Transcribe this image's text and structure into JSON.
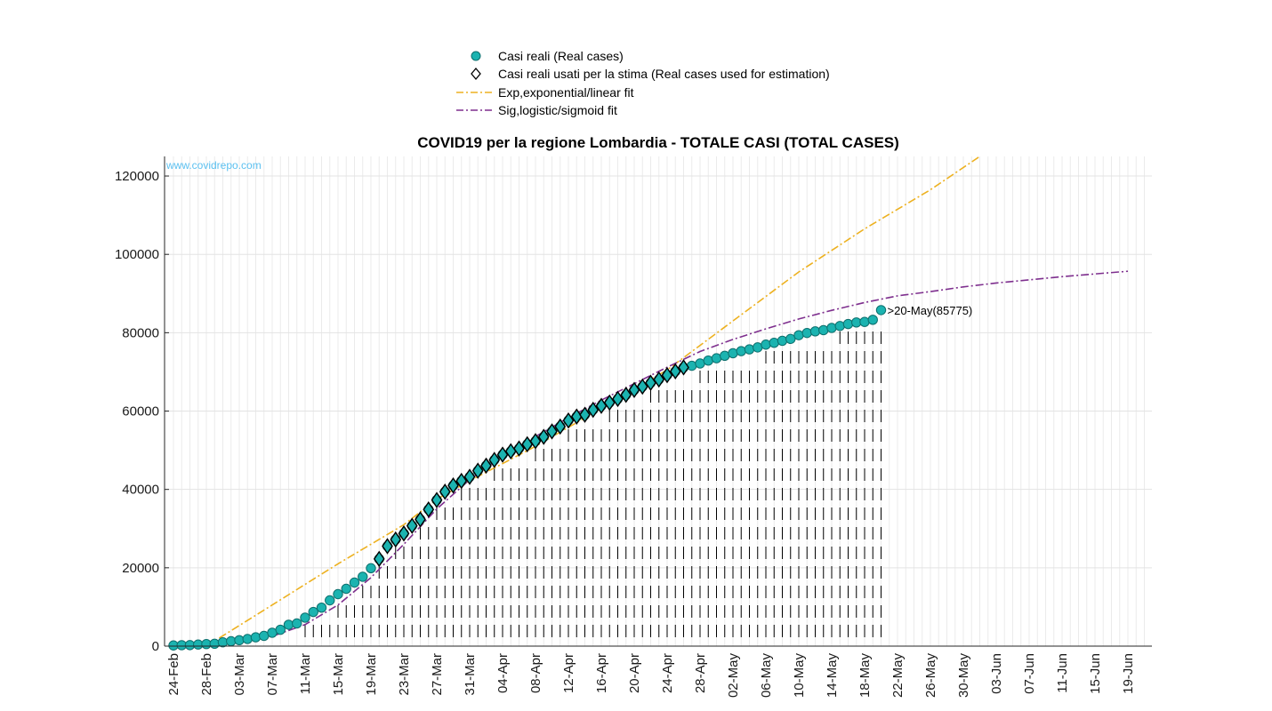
{
  "chart_data": {
    "type": "scatter",
    "title": "COVID19 per la regione Lombardia - TOTALE CASI (TOTAL CASES)",
    "watermark": "www.covidrepo.com",
    "xlabel": "",
    "ylabel": "",
    "ylim": [
      0,
      125000
    ],
    "x_start": "24-Feb",
    "x_end": "21-Jun",
    "y_ticks": [
      "0",
      "20000",
      "40000",
      "60000",
      "80000",
      "100000",
      "120000"
    ],
    "x_ticks": [
      "24-Feb",
      "28-Feb",
      "03-Mar",
      "07-Mar",
      "11-Mar",
      "15-Mar",
      "19-Mar",
      "23-Mar",
      "27-Mar",
      "31-Mar",
      "04-Apr",
      "08-Apr",
      "12-Apr",
      "16-Apr",
      "20-Apr",
      "24-Apr",
      "28-Apr",
      "02-May",
      "06-May",
      "10-May",
      "14-May",
      "18-May",
      "22-May",
      "26-May",
      "30-May",
      "03-Jun",
      "07-Jun",
      "11-Jun",
      "15-Jun",
      "19-Jun"
    ],
    "grid": true,
    "legend_position": "top-center",
    "legend": [
      {
        "label": "Casi reali (Real cases)",
        "marker": "circle"
      },
      {
        "label": "Casi reali usati per la stima (Real cases used for estimation)",
        "marker": "diamond"
      },
      {
        "label": "Exp,exponential/linear fit",
        "marker": "dashdot-line"
      },
      {
        "label": "Sig,logistic/sigmoid fit",
        "marker": "dashdot-line"
      }
    ],
    "colors": {
      "real": "#1bb3b0",
      "real_edge": "#0d6f6d",
      "estimation": "#1bb3b0",
      "exp_fit": "#edb120",
      "sig_fit": "#7e2f8e"
    },
    "end_label": ">20-May(85775)",
    "series": [
      {
        "name": "Casi reali (Real cases)",
        "x": [
          "24-Feb",
          "25-Feb",
          "26-Feb",
          "27-Feb",
          "28-Feb",
          "29-Feb",
          "01-Mar",
          "02-Mar",
          "03-Mar",
          "04-Mar",
          "05-Mar",
          "06-Mar",
          "07-Mar",
          "08-Mar",
          "09-Mar",
          "10-Mar",
          "11-Mar",
          "12-Mar",
          "13-Mar",
          "14-Mar",
          "15-Mar",
          "16-Mar",
          "17-Mar",
          "18-Mar",
          "19-Mar",
          "20-Mar",
          "21-Mar",
          "22-Mar",
          "23-Mar",
          "24-Mar",
          "25-Mar",
          "26-Mar",
          "27-Mar",
          "28-Mar",
          "29-Mar",
          "30-Mar",
          "31-Mar",
          "01-Apr",
          "02-Apr",
          "03-Apr",
          "04-Apr",
          "05-Apr",
          "06-Apr",
          "07-Apr",
          "08-Apr",
          "09-Apr",
          "10-Apr",
          "11-Apr",
          "12-Apr",
          "13-Apr",
          "14-Apr",
          "15-Apr",
          "16-Apr",
          "17-Apr",
          "18-Apr",
          "19-Apr",
          "20-Apr",
          "21-Apr",
          "22-Apr",
          "23-Apr",
          "24-Apr",
          "25-Apr",
          "26-Apr",
          "27-Apr",
          "28-Apr",
          "29-Apr",
          "30-Apr",
          "01-May",
          "02-May",
          "03-May",
          "04-May",
          "05-May",
          "06-May",
          "07-May",
          "08-May",
          "09-May",
          "10-May",
          "11-May",
          "12-May",
          "13-May",
          "14-May",
          "15-May",
          "16-May",
          "17-May",
          "18-May",
          "19-May",
          "20-May"
        ],
        "y": [
          172,
          240,
          258,
          403,
          531,
          615,
          984,
          1254,
          1520,
          1820,
          2251,
          2612,
          3420,
          4189,
          5469,
          5791,
          7280,
          8725,
          9820,
          11685,
          13272,
          14649,
          16220,
          17713,
          19884,
          22264,
          25515,
          27206,
          28761,
          30703,
          32346,
          34889,
          37298,
          39415,
          41007,
          42161,
          43208,
          44773,
          46065,
          47520,
          48874,
          49731,
          50455,
          51534,
          52325,
          53414,
          54802,
          56048,
          57592,
          58596,
          59052,
          60314,
          61326,
          62153,
          63094,
          64135,
          65381,
          66236,
          67214,
          68060,
          69165,
          70140,
          71140,
          71569,
          72145,
          72889,
          73479,
          74111,
          74770,
          75306,
          75763,
          76251,
          76962,
          77430,
          77945,
          78415,
          79369,
          79936,
          80355,
          80663,
          81228,
          81720,
          82218,
          82617,
          82764,
          83298,
          85775
        ]
      },
      {
        "name": "Casi reali usati per la stima (Real cases used for estimation)",
        "x": [
          "20-Mar",
          "21-Mar",
          "22-Mar",
          "23-Mar",
          "24-Mar",
          "25-Mar",
          "26-Mar",
          "27-Mar",
          "28-Mar",
          "29-Mar",
          "30-Mar",
          "31-Mar",
          "01-Apr",
          "02-Apr",
          "03-Apr",
          "04-Apr",
          "05-Apr",
          "06-Apr",
          "07-Apr",
          "08-Apr",
          "09-Apr",
          "10-Apr",
          "11-Apr",
          "12-Apr",
          "13-Apr",
          "14-Apr",
          "15-Apr",
          "16-Apr",
          "17-Apr",
          "18-Apr",
          "19-Apr",
          "20-Apr",
          "21-Apr",
          "22-Apr",
          "23-Apr",
          "24-Apr",
          "25-Apr",
          "26-Apr"
        ],
        "y": [
          22264,
          25515,
          27206,
          28761,
          30703,
          32346,
          34889,
          37298,
          39415,
          41007,
          42161,
          43208,
          44773,
          46065,
          47520,
          48874,
          49731,
          50455,
          51534,
          52325,
          53414,
          54802,
          56048,
          57592,
          58596,
          59052,
          60314,
          61326,
          62153,
          63094,
          64135,
          65381,
          66236,
          67214,
          68060,
          69165,
          70140,
          71140
        ]
      },
      {
        "name": "Exp,exponential/linear fit",
        "x": [
          "28-Feb",
          "07-Mar",
          "15-Mar",
          "23-Mar",
          "27-Mar",
          "31-Mar",
          "08-Apr",
          "16-Apr",
          "24-Apr",
          "02-May",
          "10-May",
          "18-May",
          "26-May",
          "01-Jun"
        ],
        "y": [
          0,
          10500,
          21000,
          31000,
          37500,
          42200,
          51000,
          60700,
          70500,
          83000,
          95500,
          106500,
          116500,
          125000
        ]
      },
      {
        "name": "Sig,logistic/sigmoid fit",
        "x": [
          "29-Feb",
          "07-Mar",
          "11-Mar",
          "15-Mar",
          "19-Mar",
          "23-Mar",
          "27-Mar",
          "31-Mar",
          "04-Apr",
          "08-Apr",
          "12-Apr",
          "16-Apr",
          "20-Apr",
          "24-Apr",
          "28-Apr",
          "02-May",
          "06-May",
          "10-May",
          "14-May",
          "18-May",
          "22-May",
          "26-May",
          "30-May",
          "03-Jun",
          "07-Jun",
          "11-Jun",
          "15-Jun",
          "19-Jun"
        ],
        "y": [
          0,
          2500,
          5500,
          10500,
          17500,
          26000,
          35000,
          42500,
          48500,
          53500,
          58300,
          62800,
          67000,
          71200,
          75200,
          78300,
          81000,
          83500,
          85700,
          87700,
          89400,
          90500,
          91700,
          92700,
          93500,
          94300,
          95000,
          95700
        ]
      }
    ]
  }
}
